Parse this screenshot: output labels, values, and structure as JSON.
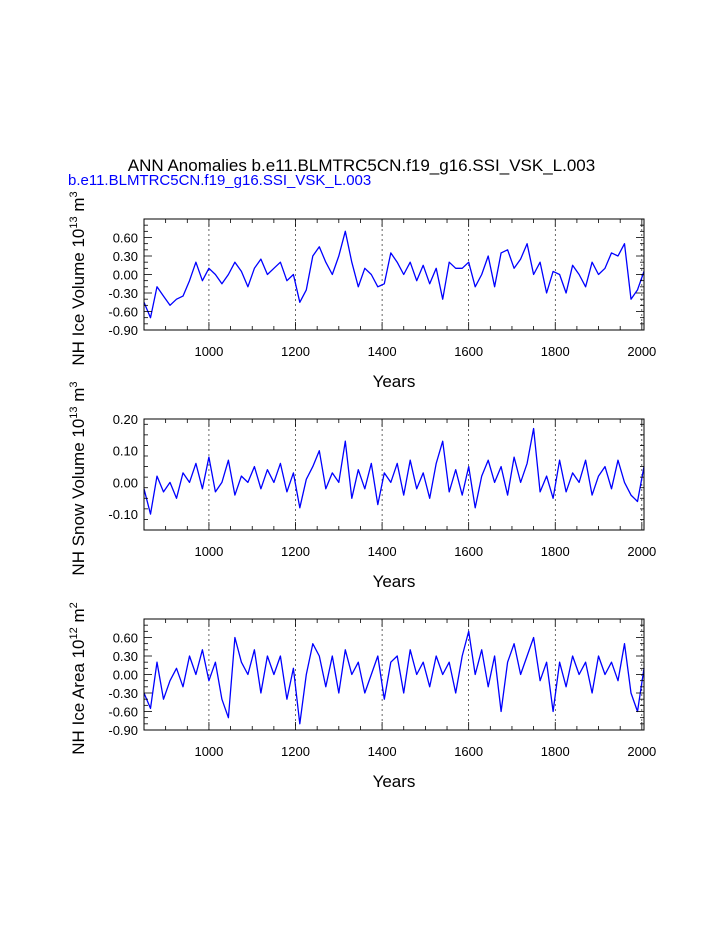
{
  "title": "ANN Anomalies b.e11.BLMTRC5CN.f19_g16.SSI_VSK_L.003",
  "subtitle": "b.e11.BLMTRC5CN.f19_g16.SSI_VSK_L.003",
  "colors": {
    "line": "#0000ff",
    "subtitle": "#0000ff",
    "axis": "#000000",
    "grid": "#000000"
  },
  "chart_data": [
    {
      "type": "line",
      "ylabel": {
        "text": "NH Ice Volume 10",
        "exp": "13",
        "unit": " m",
        "unit_exp": "3"
      },
      "xlabel": "Years",
      "xlim": [
        850,
        2005
      ],
      "ylim": [
        -0.9,
        0.9
      ],
      "xticks": [
        1000,
        1200,
        1400,
        1600,
        1800,
        2000
      ],
      "xtick_labels": [
        "1000",
        "1200",
        "1400",
        "1600",
        "1800",
        "2000"
      ],
      "yticks": [
        -0.9,
        -0.6,
        -0.3,
        0.0,
        0.3,
        0.6
      ],
      "ytick_labels": [
        "-0.90",
        "-0.60",
        "-0.30",
        "0.00",
        "0.30",
        "0.60"
      ],
      "grid": "dashed vertical at x ticks",
      "x": [
        850,
        865,
        880,
        895,
        910,
        925,
        940,
        955,
        970,
        985,
        1000,
        1015,
        1030,
        1045,
        1060,
        1075,
        1090,
        1105,
        1120,
        1135,
        1150,
        1165,
        1180,
        1195,
        1210,
        1225,
        1240,
        1255,
        1270,
        1285,
        1300,
        1315,
        1330,
        1345,
        1360,
        1375,
        1390,
        1405,
        1420,
        1435,
        1450,
        1465,
        1480,
        1495,
        1510,
        1525,
        1540,
        1555,
        1570,
        1585,
        1600,
        1615,
        1630,
        1645,
        1660,
        1675,
        1690,
        1705,
        1720,
        1735,
        1750,
        1765,
        1780,
        1795,
        1810,
        1825,
        1840,
        1855,
        1870,
        1885,
        1900,
        1915,
        1930,
        1945,
        1960,
        1975,
        1990,
        2005
      ],
      "y": [
        -0.45,
        -0.7,
        -0.2,
        -0.35,
        -0.5,
        -0.4,
        -0.35,
        -0.1,
        0.2,
        -0.1,
        0.1,
        0.0,
        -0.15,
        0.0,
        0.2,
        0.05,
        -0.2,
        0.1,
        0.25,
        0.0,
        0.1,
        0.2,
        -0.1,
        0.0,
        -0.45,
        -0.25,
        0.3,
        0.45,
        0.2,
        0.0,
        0.3,
        0.7,
        0.2,
        -0.2,
        0.1,
        0.0,
        -0.2,
        -0.15,
        0.35,
        0.2,
        0.0,
        0.2,
        -0.1,
        0.15,
        -0.15,
        0.1,
        -0.4,
        0.2,
        0.1,
        0.1,
        0.2,
        -0.2,
        0.0,
        0.3,
        -0.2,
        0.35,
        0.4,
        0.1,
        0.25,
        0.5,
        0.0,
        0.2,
        -0.3,
        0.05,
        0.0,
        -0.3,
        0.15,
        0.0,
        -0.2,
        0.2,
        0.0,
        0.1,
        0.35,
        0.3,
        0.5,
        -0.4,
        -0.25,
        0.05
      ]
    },
    {
      "type": "line",
      "ylabel": {
        "text": "NH Snow Volume 10",
        "exp": "13",
        "unit": " m",
        "unit_exp": "3"
      },
      "xlabel": "Years",
      "xlim": [
        850,
        2005
      ],
      "ylim": [
        -0.15,
        0.2
      ],
      "xticks": [
        1000,
        1200,
        1400,
        1600,
        1800,
        2000
      ],
      "xtick_labels": [
        "1000",
        "1200",
        "1400",
        "1600",
        "1800",
        "2000"
      ],
      "yticks": [
        -0.1,
        0.0,
        0.1,
        0.2
      ],
      "ytick_labels": [
        "-0.10",
        "0.00",
        "0.10",
        "0.20"
      ],
      "grid": "dashed vertical at x ticks",
      "x": [
        850,
        865,
        880,
        895,
        910,
        925,
        940,
        955,
        970,
        985,
        1000,
        1015,
        1030,
        1045,
        1060,
        1075,
        1090,
        1105,
        1120,
        1135,
        1150,
        1165,
        1180,
        1195,
        1210,
        1225,
        1240,
        1255,
        1270,
        1285,
        1300,
        1315,
        1330,
        1345,
        1360,
        1375,
        1390,
        1405,
        1420,
        1435,
        1450,
        1465,
        1480,
        1495,
        1510,
        1525,
        1540,
        1555,
        1570,
        1585,
        1600,
        1615,
        1630,
        1645,
        1660,
        1675,
        1690,
        1705,
        1720,
        1735,
        1750,
        1765,
        1780,
        1795,
        1810,
        1825,
        1840,
        1855,
        1870,
        1885,
        1900,
        1915,
        1930,
        1945,
        1960,
        1975,
        1990,
        2005
      ],
      "y": [
        -0.02,
        -0.1,
        0.02,
        -0.03,
        0.0,
        -0.05,
        0.03,
        0.0,
        0.06,
        -0.02,
        0.08,
        -0.03,
        0.0,
        0.07,
        -0.04,
        0.02,
        0.0,
        0.05,
        -0.02,
        0.04,
        0.0,
        0.06,
        -0.03,
        0.03,
        -0.08,
        0.01,
        0.05,
        0.1,
        -0.02,
        0.03,
        0.0,
        0.13,
        -0.05,
        0.04,
        -0.02,
        0.06,
        -0.07,
        0.03,
        0.0,
        0.06,
        -0.04,
        0.07,
        -0.02,
        0.03,
        -0.05,
        0.06,
        0.13,
        -0.03,
        0.04,
        -0.04,
        0.05,
        -0.08,
        0.02,
        0.07,
        0.0,
        0.05,
        -0.04,
        0.08,
        0.0,
        0.06,
        0.17,
        -0.03,
        0.02,
        -0.05,
        0.07,
        -0.03,
        0.03,
        0.0,
        0.07,
        -0.04,
        0.02,
        0.05,
        -0.02,
        0.07,
        0.0,
        -0.04,
        -0.06,
        0.05
      ]
    },
    {
      "type": "line",
      "ylabel": {
        "text": "NH Ice Area 10",
        "exp": "12",
        "unit": " m",
        "unit_exp": "2"
      },
      "xlabel": "Years",
      "xlim": [
        850,
        2005
      ],
      "ylim": [
        -0.9,
        0.9
      ],
      "xticks": [
        1000,
        1200,
        1400,
        1600,
        1800,
        2000
      ],
      "xtick_labels": [
        "1000",
        "1200",
        "1400",
        "1600",
        "1800",
        "2000"
      ],
      "yticks": [
        -0.9,
        -0.6,
        -0.3,
        0.0,
        0.3,
        0.6
      ],
      "ytick_labels": [
        "-0.90",
        "-0.60",
        "-0.30",
        "0.00",
        "0.30",
        "0.60"
      ],
      "grid": "dashed vertical at x ticks",
      "x": [
        850,
        865,
        880,
        895,
        910,
        925,
        940,
        955,
        970,
        985,
        1000,
        1015,
        1030,
        1045,
        1060,
        1075,
        1090,
        1105,
        1120,
        1135,
        1150,
        1165,
        1180,
        1195,
        1210,
        1225,
        1240,
        1255,
        1270,
        1285,
        1300,
        1315,
        1330,
        1345,
        1360,
        1375,
        1390,
        1405,
        1420,
        1435,
        1450,
        1465,
        1480,
        1495,
        1510,
        1525,
        1540,
        1555,
        1570,
        1585,
        1600,
        1615,
        1630,
        1645,
        1660,
        1675,
        1690,
        1705,
        1720,
        1735,
        1750,
        1765,
        1780,
        1795,
        1810,
        1825,
        1840,
        1855,
        1870,
        1885,
        1900,
        1915,
        1930,
        1945,
        1960,
        1975,
        1990,
        2005
      ],
      "y": [
        -0.3,
        -0.55,
        0.2,
        -0.4,
        -0.1,
        0.1,
        -0.2,
        0.3,
        0.0,
        0.4,
        -0.1,
        0.2,
        -0.4,
        -0.7,
        0.6,
        0.2,
        0.0,
        0.4,
        -0.3,
        0.3,
        0.0,
        0.3,
        -0.4,
        0.1,
        -0.8,
        0.0,
        0.5,
        0.3,
        -0.2,
        0.3,
        -0.3,
        0.4,
        0.0,
        0.2,
        -0.3,
        0.0,
        0.3,
        -0.4,
        0.2,
        0.3,
        -0.3,
        0.4,
        0.0,
        0.2,
        -0.2,
        0.3,
        0.0,
        0.2,
        -0.3,
        0.3,
        0.7,
        0.0,
        0.4,
        -0.2,
        0.3,
        -0.6,
        0.2,
        0.5,
        0.0,
        0.3,
        0.6,
        -0.1,
        0.2,
        -0.6,
        0.2,
        -0.2,
        0.3,
        0.0,
        0.2,
        -0.3,
        0.3,
        0.0,
        0.2,
        -0.1,
        0.5,
        -0.3,
        -0.6,
        0.1
      ]
    }
  ]
}
